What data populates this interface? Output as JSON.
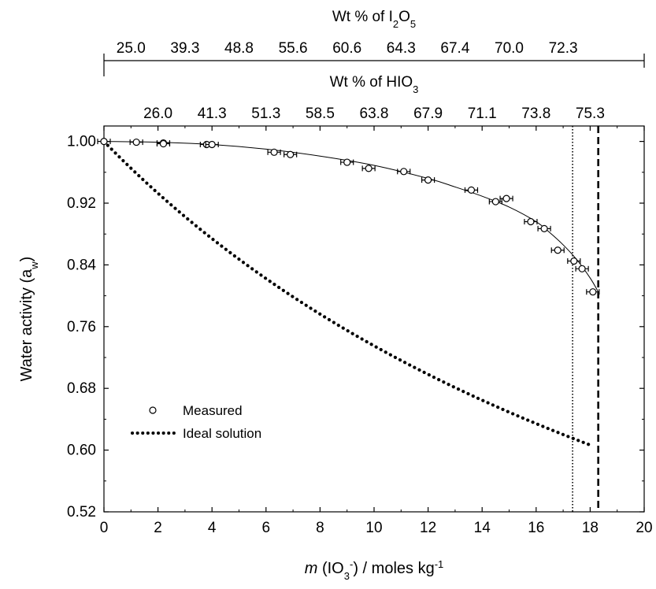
{
  "chart_data": {
    "type": "scatter",
    "xlabel": {
      "italic": "m",
      "pre": " (IO",
      "sub": "3",
      "sup": "-",
      "post": ") / moles kg",
      "post_sup": "-1"
    },
    "ylabel": {
      "main": "Water activity (a",
      "sub": "w",
      "post": ")"
    },
    "xlim": [
      0,
      20
    ],
    "ylim": [
      0.52,
      1.02
    ],
    "x_ticks": [
      0,
      2,
      4,
      6,
      8,
      10,
      12,
      14,
      16,
      18,
      20
    ],
    "y_ticks": [
      0.52,
      0.6,
      0.68,
      0.76,
      0.84,
      0.92,
      1.0
    ],
    "x_tick_labels": [
      "0",
      "2",
      "4",
      "6",
      "8",
      "10",
      "12",
      "14",
      "16",
      "18",
      "20"
    ],
    "y_tick_labels": [
      "0.52",
      "0.60",
      "0.68",
      "0.76",
      "0.84",
      "0.92",
      "1.00"
    ],
    "top_axis_i2o5": {
      "title": {
        "pre": "Wt % of I",
        "sub1": "2",
        "mid": "O",
        "sub2": "5"
      },
      "ticks": [
        {
          "m": 1,
          "label": "25.0"
        },
        {
          "m": 3,
          "label": "39.3"
        },
        {
          "m": 5,
          "label": "48.8"
        },
        {
          "m": 7,
          "label": "55.6"
        },
        {
          "m": 9,
          "label": "60.6"
        },
        {
          "m": 11,
          "label": "64.3"
        },
        {
          "m": 13,
          "label": "67.4"
        },
        {
          "m": 15,
          "label": "70.0"
        },
        {
          "m": 17,
          "label": "72.3"
        }
      ]
    },
    "top_axis_hio3": {
      "title": {
        "pre": "Wt % of HIO",
        "sub": "3"
      },
      "ticks": [
        {
          "m": 2,
          "label": "26.0"
        },
        {
          "m": 4,
          "label": "41.3"
        },
        {
          "m": 6,
          "label": "51.3"
        },
        {
          "m": 8,
          "label": "58.5"
        },
        {
          "m": 10,
          "label": "63.8"
        },
        {
          "m": 12,
          "label": "67.9"
        },
        {
          "m": 14,
          "label": "71.1"
        },
        {
          "m": 16,
          "label": "73.8"
        },
        {
          "m": 18,
          "label": "75.3"
        }
      ]
    },
    "series": [
      {
        "name": "Measured",
        "marker": "open-circle",
        "error_bars": true,
        "points": [
          {
            "x": 0.0,
            "y": 1.0
          },
          {
            "x": 1.2,
            "y": 0.999
          },
          {
            "x": 2.2,
            "y": 0.998
          },
          {
            "x": 2.2,
            "y": 0.997
          },
          {
            "x": 3.8,
            "y": 0.996
          },
          {
            "x": 4.0,
            "y": 0.996
          },
          {
            "x": 6.3,
            "y": 0.986
          },
          {
            "x": 6.9,
            "y": 0.983
          },
          {
            "x": 9.0,
            "y": 0.973
          },
          {
            "x": 9.8,
            "y": 0.965
          },
          {
            "x": 11.1,
            "y": 0.961
          },
          {
            "x": 12.0,
            "y": 0.95
          },
          {
            "x": 13.6,
            "y": 0.937
          },
          {
            "x": 14.5,
            "y": 0.922
          },
          {
            "x": 14.9,
            "y": 0.926
          },
          {
            "x": 15.8,
            "y": 0.896
          },
          {
            "x": 16.3,
            "y": 0.887
          },
          {
            "x": 16.8,
            "y": 0.859
          },
          {
            "x": 17.4,
            "y": 0.845
          },
          {
            "x": 17.7,
            "y": 0.835
          },
          {
            "x": 18.1,
            "y": 0.805
          }
        ]
      },
      {
        "name": "Fit",
        "line": "solid",
        "x": [
          0,
          2,
          4,
          6,
          8,
          10,
          12,
          13,
          14,
          15,
          16,
          16.5,
          17,
          17.5,
          18,
          18.3
        ],
        "y": [
          1.0,
          0.999,
          0.996,
          0.99,
          0.981,
          0.969,
          0.952,
          0.941,
          0.929,
          0.915,
          0.896,
          0.882,
          0.866,
          0.847,
          0.823,
          0.805
        ]
      },
      {
        "name": "Ideal solution",
        "line": "dotted",
        "x_from": 0,
        "x_to": 18.1
      }
    ],
    "reference_lines": [
      {
        "x": 17.35,
        "style": "dotted"
      },
      {
        "x": 18.3,
        "style": "dashed"
      }
    ],
    "legend": {
      "position": "bottom-left",
      "items": [
        {
          "label": "Measured",
          "marker": "open-circle"
        },
        {
          "label": "Ideal solution",
          "line": "dotted"
        }
      ]
    }
  }
}
